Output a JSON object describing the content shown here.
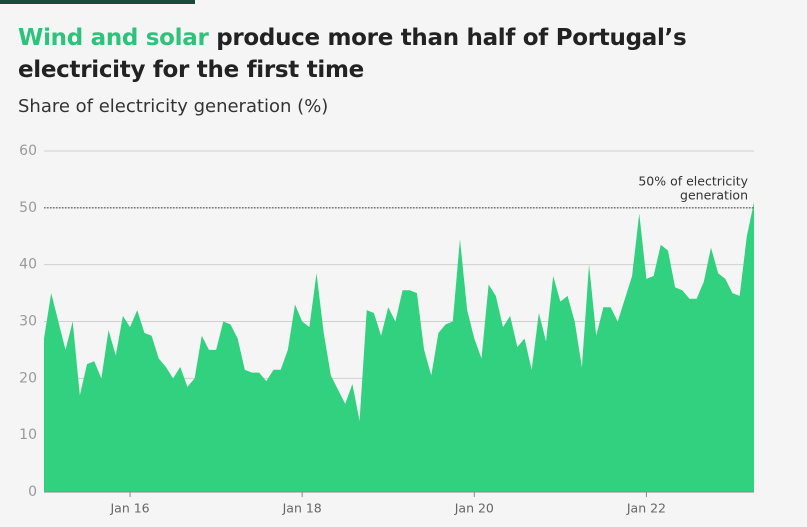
{
  "chart_data": {
    "type": "area",
    "title": {
      "highlight": "Wind and solar",
      "rest": " produce more than half of Portugal’s electricity for the first time"
    },
    "subtitle": "Share of electricity generation (%)",
    "x": [
      "2015-01",
      "2015-02",
      "2015-03",
      "2015-04",
      "2015-05",
      "2015-06",
      "2015-07",
      "2015-08",
      "2015-09",
      "2015-10",
      "2015-11",
      "2015-12",
      "2016-01",
      "2016-02",
      "2016-03",
      "2016-04",
      "2016-05",
      "2016-06",
      "2016-07",
      "2016-08",
      "2016-09",
      "2016-10",
      "2016-11",
      "2016-12",
      "2017-01",
      "2017-02",
      "2017-03",
      "2017-04",
      "2017-05",
      "2017-06",
      "2017-07",
      "2017-08",
      "2017-09",
      "2017-10",
      "2017-11",
      "2017-12",
      "2018-01",
      "2018-02",
      "2018-03",
      "2018-04",
      "2018-05",
      "2018-06",
      "2018-07",
      "2018-08",
      "2018-09",
      "2018-10",
      "2018-11",
      "2018-12",
      "2019-01",
      "2019-02",
      "2019-03",
      "2019-04",
      "2019-05",
      "2019-06",
      "2019-07",
      "2019-08",
      "2019-09",
      "2019-10",
      "2019-11",
      "2019-12",
      "2020-01",
      "2020-02",
      "2020-03",
      "2020-04",
      "2020-05",
      "2020-06",
      "2020-07",
      "2020-08",
      "2020-09",
      "2020-10",
      "2020-11",
      "2020-12",
      "2021-01",
      "2021-02",
      "2021-03",
      "2021-04",
      "2021-05",
      "2021-06",
      "2021-07",
      "2021-08",
      "2021-09",
      "2021-10",
      "2021-11",
      "2021-12",
      "2022-01",
      "2022-02",
      "2022-03",
      "2022-04",
      "2022-05",
      "2022-06",
      "2022-07",
      "2022-08",
      "2022-09",
      "2022-10",
      "2022-11",
      "2022-12",
      "2023-01",
      "2023-02",
      "2023-03",
      "2023-04"
    ],
    "series": [
      {
        "name": "Wind and solar",
        "color": "#31d17f",
        "values": [
          27,
          35,
          30,
          25,
          30,
          17,
          22.5,
          23,
          20,
          28.5,
          24,
          31,
          29,
          32,
          28,
          27.5,
          23.5,
          22,
          20,
          22,
          18.5,
          20,
          27.5,
          25,
          25,
          30,
          29.5,
          27,
          21.5,
          21,
          21,
          19.5,
          21.5,
          21.5,
          25,
          33,
          30,
          29,
          38.5,
          28,
          20.5,
          18,
          15.5,
          19,
          12.5,
          32,
          31.5,
          27.5,
          32.5,
          30,
          35.5,
          35.5,
          35,
          25,
          20.5,
          28,
          29.5,
          30,
          44.5,
          32,
          27,
          23.5,
          36.5,
          34.5,
          29,
          31,
          25.5,
          27,
          21.5,
          31.5,
          26.5,
          38,
          33.5,
          34.5,
          30,
          22,
          40,
          27.5,
          32.5,
          32.5,
          30,
          34,
          38,
          49,
          37.5,
          38,
          43.5,
          42.5,
          36,
          35.5,
          34,
          34,
          37,
          43,
          38.5,
          37.5,
          35,
          34.5,
          45,
          51
        ]
      }
    ],
    "xlim": [
      "2015-01",
      "2023-04"
    ],
    "xticks": [
      {
        "value": "2016-01",
        "label": "Jan 16"
      },
      {
        "value": "2018-01",
        "label": "Jan 18"
      },
      {
        "value": "2020-01",
        "label": "Jan 20"
      },
      {
        "value": "2022-01",
        "label": "Jan 22"
      }
    ],
    "ylim": [
      0,
      60
    ],
    "yticks": [
      0,
      10,
      20,
      30,
      40,
      50,
      60
    ],
    "grid": true,
    "reference_line": {
      "value": 50,
      "label": [
        "50% of electricity",
        "generation"
      ]
    }
  }
}
